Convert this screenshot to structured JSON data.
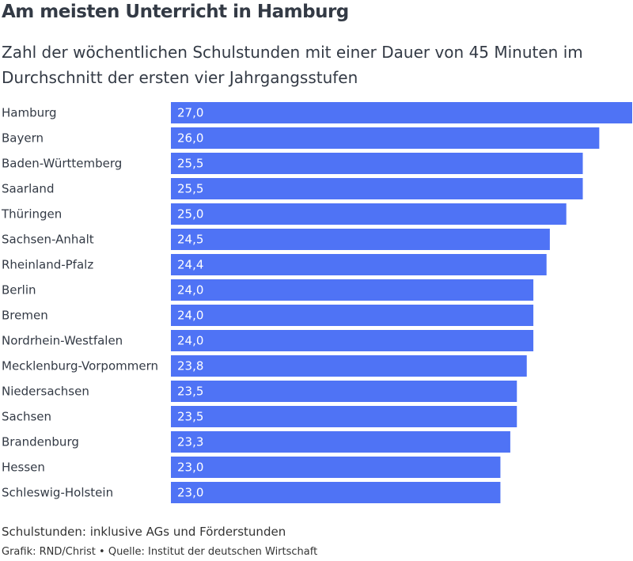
{
  "header": {
    "title": "Am meisten Unterricht in Hamburg",
    "subtitle": "Zahl der wöchentlichen Schulstunden mit einer Dauer von 45 Minuten im Durchschnitt der ersten vier Jahrgangsstufen"
  },
  "footer": {
    "note": "Schulstunden: inklusive AGs und Förderstunden",
    "credit": "Grafik: RND/Christ • Quelle: Institut der deutschen Wirtschaft"
  },
  "chart_data": {
    "type": "bar",
    "orientation": "horizontal",
    "bar_color": "#4f73f5",
    "categories": [
      "Hamburg",
      "Bayern",
      "Baden-Württemberg",
      "Saarland",
      "Thüringen",
      "Sachsen-Anhalt",
      "Rheinland-Pfalz",
      "Berlin",
      "Bremen",
      "Nordrhein-Westfalen",
      "Mecklenburg-Vorpommern",
      "Niedersachsen",
      "Sachsen",
      "Brandenburg",
      "Hessen",
      "Schleswig-Holstein"
    ],
    "values": [
      27.0,
      26.0,
      25.5,
      25.5,
      25.0,
      24.5,
      24.4,
      24.0,
      24.0,
      24.0,
      23.8,
      23.5,
      23.5,
      23.3,
      23.0,
      23.0
    ],
    "value_labels": [
      "27,0",
      "26,0",
      "25,5",
      "25,5",
      "25,0",
      "24,5",
      "24,4",
      "24,0",
      "24,0",
      "24,0",
      "23,8",
      "23,5",
      "23,5",
      "23,3",
      "23,0",
      "23,0"
    ],
    "xlim": [
      0,
      27
    ],
    "grid": false,
    "legend": "none"
  }
}
